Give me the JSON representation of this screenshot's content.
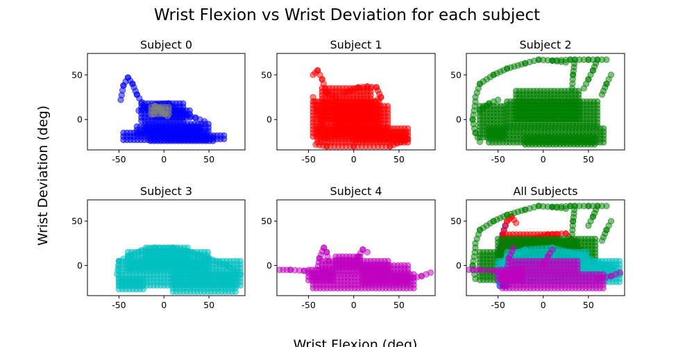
{
  "figure": {
    "title": "Wrist Flexion vs Wrist Deviation for each subject",
    "xlabel": "Wrist Flexion (deg)",
    "ylabel": "Wrist Deviation (deg)"
  },
  "colors": {
    "subject0": "#0000ff",
    "subject0_overlay": "#808080",
    "subject1": "#ff0000",
    "subject2": "#008000",
    "subject3": "#00bfbf",
    "subject4": "#bf00bf"
  },
  "chart_data": [
    {
      "type": "scatter",
      "title": "Subject 0",
      "xlim": [
        -85,
        90
      ],
      "ylim": [
        -34,
        74
      ],
      "xticks": [
        -50,
        0,
        50
      ],
      "yticks": [
        0,
        50
      ],
      "series": [
        {
          "color_key": "subject0",
          "blobs": [
            [
              -45,
              -23,
              50,
              -15
            ],
            [
              -30,
              -18,
              40,
              -8
            ],
            [
              -25,
              -5,
              25,
              18
            ],
            [
              -15,
              -25,
              55,
              -20
            ],
            [
              5,
              -23,
              68,
              -18
            ],
            [
              -20,
              -15,
              50,
              -5
            ],
            [
              -10,
              0,
              30,
              10
            ]
          ],
          "paths": [
            [
              [
                -48,
                22
              ],
              [
                -45,
                38
              ],
              [
                -40,
                47
              ],
              [
                -35,
                40
              ],
              [
                -30,
                28
              ],
              [
                -22,
                15
              ],
              [
                -15,
                10
              ]
            ],
            [
              [
                -28,
                10
              ],
              [
                -20,
                13
              ],
              [
                -8,
                17
              ],
              [
                5,
                18
              ],
              [
                15,
                10
              ],
              [
                25,
                5
              ],
              [
                35,
                2
              ],
              [
                45,
                -2
              ]
            ]
          ]
        },
        {
          "color_key": "subject0_overlay",
          "blobs": [
            [
              -14,
              5,
              6,
              14
            ]
          ],
          "paths": [
            [
              [
                -12,
                6
              ],
              [
                -10,
                15
              ],
              [
                -5,
                13
              ],
              [
                -2,
                8
              ],
              [
                4,
                4
              ]
            ]
          ]
        }
      ]
    },
    {
      "type": "scatter",
      "title": "Subject 1",
      "xlim": [
        -85,
        90
      ],
      "ylim": [
        -34,
        74
      ],
      "xticks": [
        -50,
        0,
        50
      ],
      "yticks": [
        0,
        50
      ],
      "series": [
        {
          "color_key": "subject1",
          "blobs": [
            [
              -45,
              -20,
              30,
              20
            ],
            [
              -40,
              -28,
              60,
              -10
            ],
            [
              -35,
              0,
              20,
              35
            ],
            [
              -20,
              -15,
              40,
              15
            ],
            [
              0,
              -25,
              60,
              -15
            ]
          ],
          "paths": [
            [
              [
                -45,
                50
              ],
              [
                -40,
                55
              ],
              [
                -35,
                45
              ],
              [
                -30,
                30
              ],
              [
                -20,
                25
              ]
            ],
            [
              [
                -10,
                30
              ],
              [
                5,
                36
              ],
              [
                15,
                37
              ],
              [
                25,
                36
              ],
              [
                30,
                25
              ],
              [
                20,
                18
              ]
            ],
            [
              [
                -42,
                -28
              ],
              [
                -30,
                -30
              ],
              [
                0,
                -30
              ],
              [
                40,
                -30
              ],
              [
                60,
                -22
              ]
            ],
            [
              [
                -45,
                25
              ],
              [
                -40,
                10
              ],
              [
                -35,
                -5
              ],
              [
                -30,
                -20
              ]
            ]
          ]
        }
      ]
    },
    {
      "type": "scatter",
      "title": "Subject 2",
      "xlim": [
        -85,
        90
      ],
      "ylim": [
        -34,
        74
      ],
      "xticks": [
        -50,
        0,
        50
      ],
      "yticks": [
        0,
        50
      ],
      "series": [
        {
          "color_key": "subject2",
          "blobs": [
            [
              -70,
              -20,
              -40,
              15
            ],
            [
              -60,
              -28,
              70,
              -10
            ],
            [
              -40,
              -10,
              60,
              20
            ],
            [
              -30,
              0,
              40,
              32
            ],
            [
              -20,
              -30,
              60,
              -20
            ]
          ],
          "paths": [
            [
              [
                -75,
                25
              ],
              [
                -70,
                40
              ],
              [
                -55,
                50
              ],
              [
                -40,
                57
              ],
              [
                -20,
                63
              ],
              [
                -5,
                67
              ],
              [
                10,
                66
              ],
              [
                25,
                64
              ]
            ],
            [
              [
                -75,
                20
              ],
              [
                -78,
                0
              ],
              [
                -75,
                -15
              ],
              [
                -70,
                -25
              ]
            ],
            [
              [
                10,
                66
              ],
              [
                30,
                67
              ],
              [
                50,
                67
              ],
              [
                70,
                67
              ]
            ],
            [
              [
                60,
                67
              ],
              [
                55,
                55
              ],
              [
                50,
                45
              ],
              [
                45,
                35
              ]
            ],
            [
              [
                35,
                67
              ],
              [
                33,
                50
              ],
              [
                32,
                35
              ]
            ],
            [
              [
                75,
                50
              ],
              [
                70,
                40
              ],
              [
                65,
                28
              ]
            ],
            [
              [
                -70,
                10
              ],
              [
                -60,
                18
              ],
              [
                -50,
                22
              ]
            ]
          ]
        }
      ]
    },
    {
      "type": "scatter",
      "title": "Subject 3",
      "xlim": [
        -85,
        90
      ],
      "ylim": [
        -34,
        74
      ],
      "xticks": [
        -50,
        0,
        50
      ],
      "yticks": [
        0,
        50
      ],
      "series": [
        {
          "color_key": "subject3",
          "blobs": [
            [
              -50,
              -25,
              85,
              5
            ],
            [
              -40,
              -5,
              50,
              15
            ],
            [
              -20,
              0,
              30,
              20
            ],
            [
              10,
              -30,
              80,
              -10
            ],
            [
              -50,
              -30,
              -20,
              -15
            ]
          ],
          "paths": [
            [
              [
                -52,
                -10
              ],
              [
                -50,
                5
              ],
              [
                -40,
                10
              ],
              [
                -25,
                17
              ],
              [
                -10,
                20
              ],
              [
                10,
                20
              ],
              [
                30,
                15
              ],
              [
                50,
                8
              ],
              [
                70,
                0
              ],
              [
                85,
                -10
              ]
            ]
          ]
        }
      ]
    },
    {
      "type": "scatter",
      "title": "Subject 4",
      "xlim": [
        -85,
        90
      ],
      "ylim": [
        -34,
        74
      ],
      "xticks": [
        -50,
        0,
        50
      ],
      "yticks": [
        0,
        50
      ],
      "series": [
        {
          "color_key": "subject4",
          "blobs": [
            [
              -45,
              -28,
              70,
              -10
            ],
            [
              -35,
              -10,
              40,
              5
            ],
            [
              -50,
              -20,
              -20,
              -5
            ],
            [
              -20,
              -5,
              10,
              10
            ],
            [
              10,
              -20,
              60,
              0
            ]
          ],
          "paths": [
            [
              [
                -82,
                -5
              ],
              [
                -70,
                -5
              ],
              [
                -55,
                -6
              ],
              [
                -45,
                -8
              ]
            ],
            [
              [
                -40,
                -5
              ],
              [
                -38,
                8
              ],
              [
                -33,
                20
              ],
              [
                -30,
                15
              ],
              [
                -28,
                5
              ]
            ],
            [
              [
                0,
                0
              ],
              [
                5,
                10
              ],
              [
                10,
                18
              ],
              [
                15,
                15
              ]
            ],
            [
              [
                60,
                -15
              ],
              [
                75,
                -12
              ],
              [
                85,
                -8
              ]
            ]
          ]
        }
      ]
    },
    {
      "type": "scatter",
      "title": "All Subjects",
      "xlim": [
        -85,
        90
      ],
      "ylim": [
        -34,
        74
      ],
      "xticks": [
        -50,
        0,
        50
      ],
      "yticks": [
        0,
        50
      ],
      "series": [
        {
          "color_key": "subject0",
          "blobs": [
            [
              -48,
              -25,
              -38,
              20
            ]
          ],
          "paths": [
            [
              [
                -45,
                20
              ],
              [
                -45,
                35
              ],
              [
                -42,
                45
              ]
            ]
          ]
        },
        {
          "color_key": "subject1",
          "blobs": [
            [
              -45,
              10,
              20,
              35
            ],
            [
              -30,
              0,
              40,
              20
            ]
          ],
          "paths": [
            [
              [
                -45,
                35
              ],
              [
                -40,
                50
              ],
              [
                -35,
                55
              ],
              [
                -30,
                48
              ]
            ],
            [
              [
                -10,
                30
              ],
              [
                5,
                35
              ],
              [
                25,
                36
              ],
              [
                35,
                25
              ]
            ]
          ]
        },
        {
          "color_key": "subject2",
          "blobs": [
            [
              -70,
              -20,
              -45,
              15
            ],
            [
              -50,
              0,
              60,
              30
            ],
            [
              -40,
              10,
              40,
              28
            ]
          ],
          "paths": [
            [
              [
                -75,
                25
              ],
              [
                -70,
                40
              ],
              [
                -55,
                50
              ],
              [
                -40,
                57
              ],
              [
                -20,
                63
              ],
              [
                -5,
                67
              ],
              [
                10,
                66
              ],
              [
                25,
                64
              ]
            ],
            [
              [
                -75,
                20
              ],
              [
                -78,
                0
              ],
              [
                -75,
                -15
              ]
            ],
            [
              [
                10,
                66
              ],
              [
                30,
                67
              ],
              [
                50,
                67
              ],
              [
                70,
                67
              ]
            ],
            [
              [
                60,
                67
              ],
              [
                55,
                55
              ],
              [
                50,
                45
              ]
            ],
            [
              [
                35,
                67
              ],
              [
                33,
                50
              ],
              [
                32,
                35
              ]
            ],
            [
              [
                75,
                50
              ],
              [
                70,
                40
              ],
              [
                65,
                28
              ]
            ]
          ]
        },
        {
          "color_key": "subject3",
          "blobs": [
            [
              -50,
              -20,
              85,
              5
            ],
            [
              -40,
              -5,
              50,
              15
            ],
            [
              20,
              -15,
              80,
              0
            ]
          ],
          "paths": [
            [
              [
                -50,
                -5
              ],
              [
                -40,
                10
              ],
              [
                -20,
                18
              ],
              [
                10,
                20
              ],
              [
                40,
                12
              ],
              [
                70,
                0
              ],
              [
                85,
                -10
              ]
            ]
          ]
        },
        {
          "color_key": "subject4",
          "blobs": [
            [
              -45,
              -28,
              70,
              -10
            ],
            [
              -35,
              -10,
              40,
              5
            ],
            [
              -50,
              -20,
              -20,
              -5
            ]
          ],
          "paths": [
            [
              [
                -82,
                -5
              ],
              [
                -70,
                -5
              ],
              [
                -55,
                -6
              ],
              [
                -45,
                -8
              ]
            ],
            [
              [
                -40,
                -5
              ],
              [
                -38,
                8
              ],
              [
                -33,
                20
              ]
            ],
            [
              [
                0,
                0
              ],
              [
                5,
                10
              ],
              [
                10,
                18
              ]
            ],
            [
              [
                60,
                -15
              ],
              [
                75,
                -12
              ],
              [
                85,
                -8
              ]
            ]
          ]
        }
      ]
    }
  ]
}
